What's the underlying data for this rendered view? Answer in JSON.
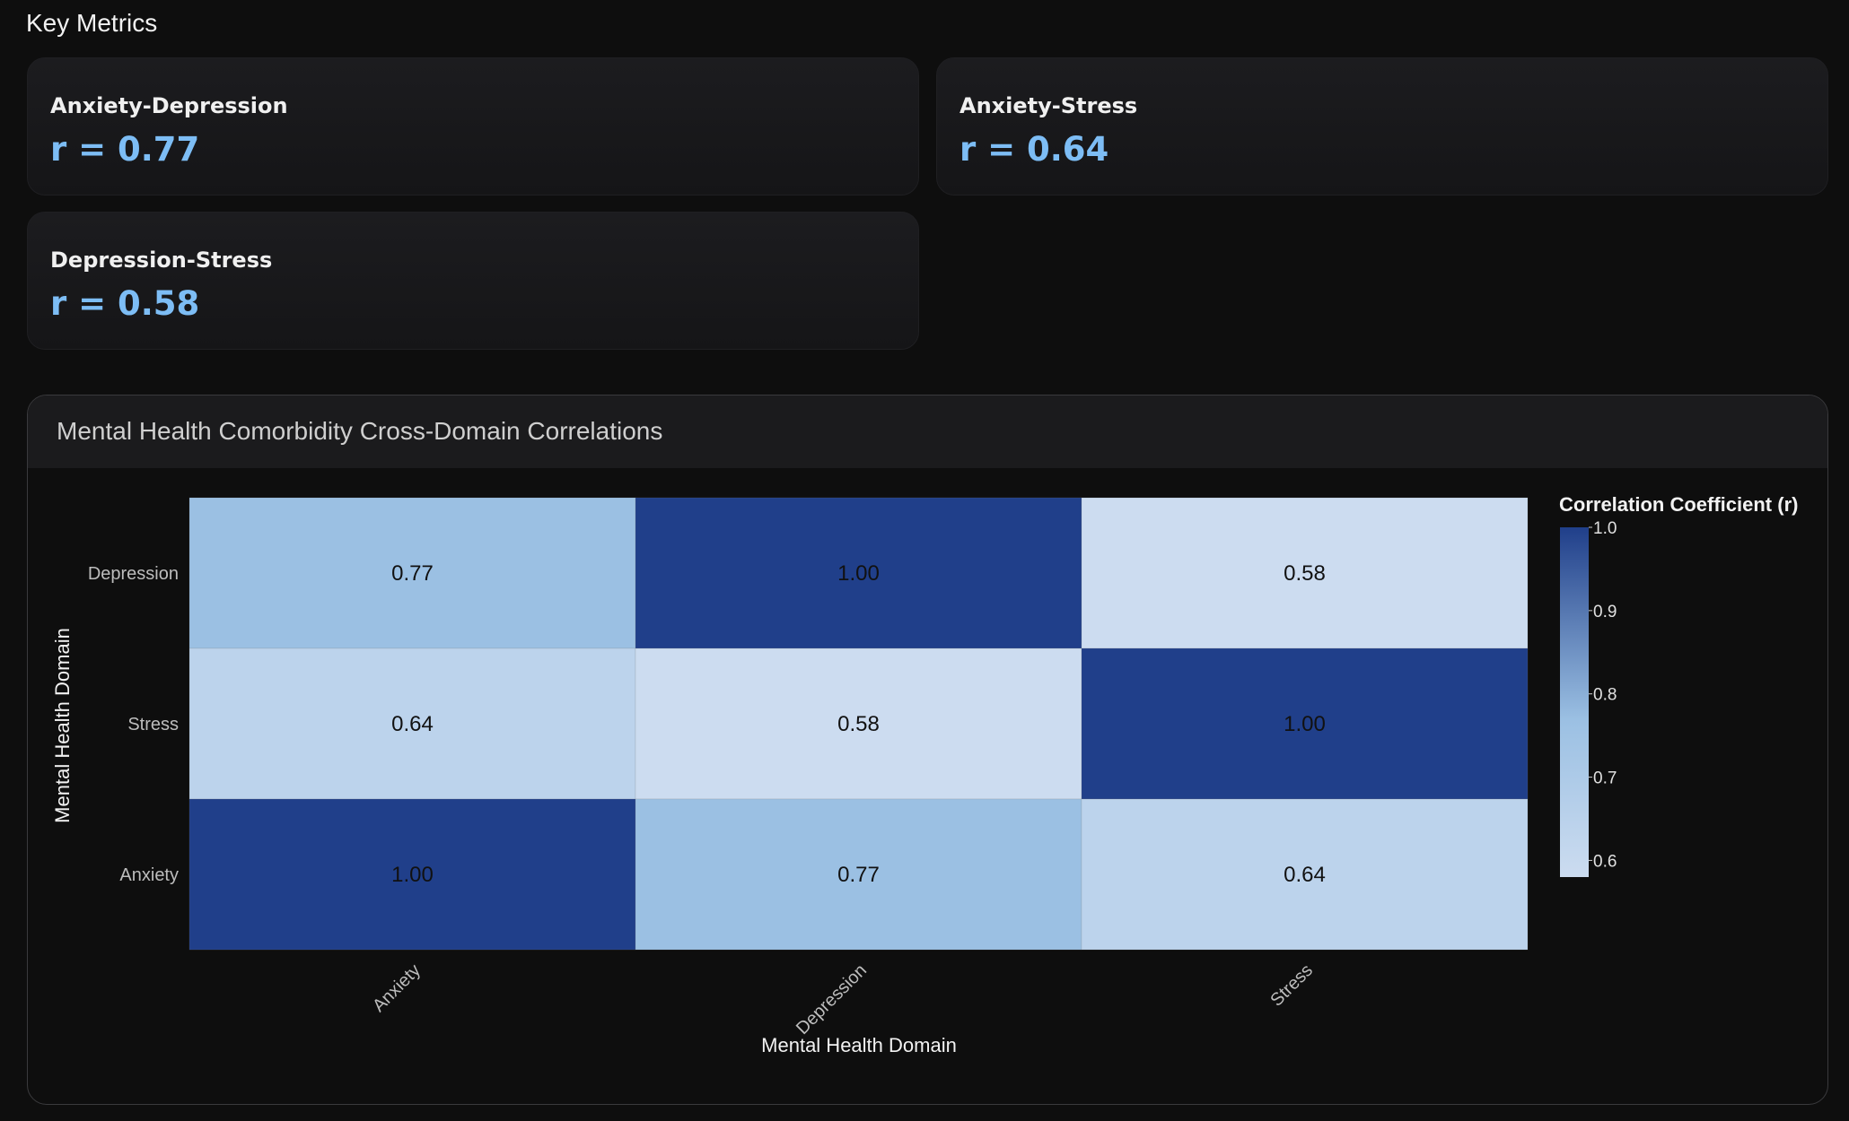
{
  "section": {
    "title": "Key Metrics"
  },
  "metrics": [
    {
      "label": "Anxiety-Depression",
      "value": "r = 0.77"
    },
    {
      "label": "Anxiety-Stress",
      "value": "r = 0.64"
    },
    {
      "label": "Depression-Stress",
      "value": "r = 0.58"
    }
  ],
  "chart_panel": {
    "title": "Mental Health Comorbidity Cross-Domain Correlations"
  },
  "colors": {
    "accent_value": "#7dbdf5",
    "scale_low": "#ccdcf0",
    "scale_high": "#203f8a"
  },
  "chart_data": {
    "type": "heatmap",
    "title": "Mental Health Comorbidity Cross-Domain Correlations",
    "x_categories": [
      "Anxiety",
      "Depression",
      "Stress"
    ],
    "y_categories": [
      "Depression",
      "Stress",
      "Anxiety"
    ],
    "values": [
      [
        0.77,
        1.0,
        0.58
      ],
      [
        0.64,
        0.58,
        1.0
      ],
      [
        1.0,
        0.77,
        0.64
      ]
    ],
    "cell_labels": [
      [
        "0.77",
        "1.00",
        "0.58"
      ],
      [
        "0.64",
        "0.58",
        "1.00"
      ],
      [
        "1.00",
        "0.77",
        "0.64"
      ]
    ],
    "xlabel": "Mental Health Domain",
    "ylabel": "Mental Health Domain",
    "colorbar": {
      "title": "Correlation Coefficient (r)",
      "range": [
        0.58,
        1.0
      ],
      "ticks": [
        "0.6",
        "0.7",
        "0.8",
        "0.9",
        "1.0"
      ]
    }
  }
}
